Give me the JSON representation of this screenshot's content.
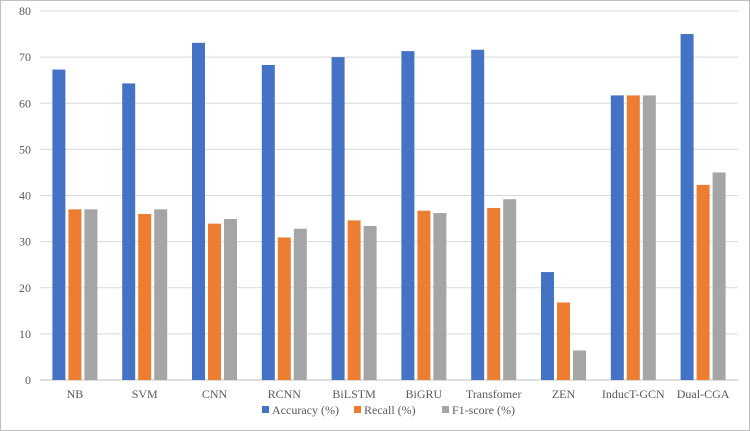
{
  "chart_data": {
    "type": "bar",
    "categories": [
      "NB",
      "SVM",
      "CNN",
      "RCNN",
      "BiLSTM",
      "BiGRU",
      "Transfomer",
      "ZEN",
      "InducT-GCN",
      "Dual-CGA"
    ],
    "series": [
      {
        "name": "Accuracy (%)",
        "color": "#4472c4",
        "values": [
          67.3,
          64.3,
          73.1,
          68.3,
          70.0,
          71.3,
          71.6,
          23.4,
          61.7,
          75.0
        ]
      },
      {
        "name": "Recall (%)",
        "color": "#ed7d31",
        "values": [
          37.0,
          36.0,
          33.9,
          30.9,
          34.6,
          36.7,
          37.3,
          16.8,
          61.7,
          42.3
        ]
      },
      {
        "name": "F1-score (%)",
        "color": "#a5a5a5",
        "values": [
          37.0,
          37.0,
          34.9,
          32.8,
          33.4,
          36.2,
          39.2,
          6.4,
          61.7,
          45.0
        ]
      }
    ],
    "ylim": [
      0,
      80
    ],
    "yticks": [
      "0",
      "10",
      "20",
      "30",
      "40",
      "50",
      "60",
      "70",
      "80"
    ],
    "grid": true,
    "legend_position": "bottom"
  }
}
